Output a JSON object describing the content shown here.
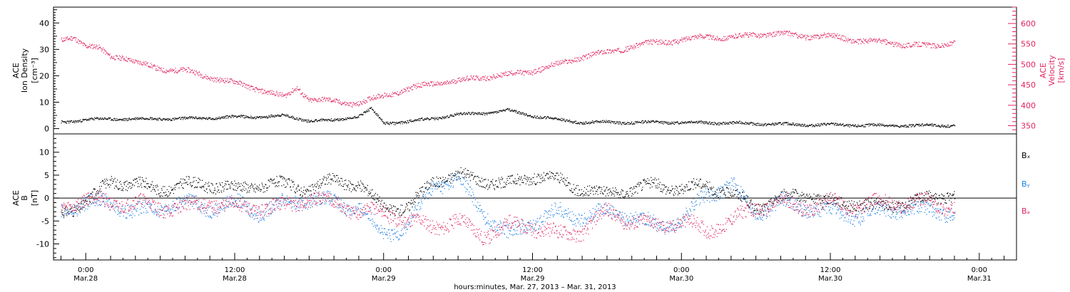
{
  "chart_data": [
    {
      "type": "scatter",
      "panel": "top",
      "ylabel_left": [
        "ACE",
        "Ion Density",
        "[cm⁻³]"
      ],
      "ylabel_right": [
        "ACE",
        "Velocity",
        "[km/s]"
      ],
      "ylim_left": [
        -2,
        46
      ],
      "yticks_left": [
        "0",
        "10",
        "20",
        "30",
        "40"
      ],
      "ylim_right": [
        330,
        640
      ],
      "yticks_right": [
        "350",
        "400",
        "450",
        "500",
        "550",
        "600"
      ],
      "series": [
        {
          "axis": "left",
          "color": "#000000",
          "x_hours": [
            -2,
            0,
            2,
            4,
            6,
            8,
            10,
            12,
            14,
            16,
            18,
            20,
            22,
            23,
            24,
            26,
            28,
            30,
            32,
            34,
            36,
            38,
            40,
            42,
            44,
            46,
            48,
            50,
            52,
            54,
            56,
            58,
            60,
            62,
            64,
            66,
            68,
            70
          ],
          "values": [
            2.6,
            3.5,
            3.8,
            3.8,
            3.9,
            3.9,
            4.2,
            4.6,
            4.6,
            5.0,
            3.2,
            3.2,
            5.0,
            7.5,
            2.2,
            2.8,
            4.0,
            5.5,
            6.0,
            7.0,
            5.0,
            3.5,
            2.5,
            2.6,
            2.4,
            2.6,
            2.5,
            2.4,
            2.2,
            2.0,
            1.8,
            1.6,
            1.6,
            1.4,
            1.3,
            1.3,
            1.3,
            1.4
          ]
        },
        {
          "axis": "right",
          "color": "#e0245e",
          "x_hours": [
            -2,
            -1,
            0,
            1,
            2,
            3,
            4,
            6,
            8,
            10,
            12,
            14,
            16,
            17,
            18,
            20,
            22,
            23,
            24,
            26,
            28,
            30,
            32,
            34,
            36,
            38,
            40,
            42,
            44,
            46,
            48,
            50,
            52,
            54,
            56,
            58,
            60,
            62,
            64,
            66,
            68,
            70
          ],
          "values": [
            560,
            570,
            545,
            540,
            520,
            520,
            505,
            490,
            485,
            470,
            455,
            440,
            420,
            445,
            415,
            410,
            405,
            415,
            425,
            440,
            455,
            460,
            470,
            475,
            485,
            500,
            520,
            530,
            545,
            555,
            560,
            570,
            565,
            575,
            575,
            570,
            570,
            560,
            555,
            550,
            545,
            555
          ]
        }
      ]
    },
    {
      "type": "scatter",
      "panel": "bottom",
      "ylabel": [
        "ACE",
        "B",
        "[nT]"
      ],
      "ylim": [
        -13.5,
        14
      ],
      "yticks": [
        "-10",
        "-5",
        "0",
        "5",
        "10"
      ],
      "legend": [
        "Bₓ",
        "Bᵧ",
        "Bₔ"
      ],
      "legend_colors": [
        "#000000",
        "#1f7fe0",
        "#e0245e"
      ],
      "legend_placement": "right",
      "zero_line": true,
      "series": [
        {
          "name": "Bx",
          "color": "#000000",
          "x_hours": [
            -2,
            0,
            2,
            4,
            6,
            8,
            10,
            12,
            14,
            16,
            18,
            20,
            22,
            24,
            26,
            28,
            30,
            32,
            34,
            36,
            38,
            40,
            42,
            44,
            46,
            48,
            50,
            52,
            54,
            56,
            58,
            60,
            62,
            64,
            66,
            68,
            70
          ],
          "values": [
            -3,
            -1,
            4,
            3,
            2,
            3,
            3,
            2,
            3,
            3,
            2,
            4,
            3,
            -2,
            -2,
            4,
            5,
            4,
            3,
            5,
            4,
            2,
            1,
            2,
            3,
            2,
            3,
            1,
            -2,
            0,
            1,
            -1,
            -1,
            -2,
            -1,
            0,
            1
          ]
        },
        {
          "name": "By",
          "color": "#1f7fe0",
          "x_hours": [
            -2,
            0,
            2,
            4,
            6,
            8,
            10,
            12,
            14,
            16,
            18,
            20,
            22,
            24,
            26,
            28,
            30,
            32,
            34,
            36,
            38,
            40,
            42,
            44,
            46,
            48,
            50,
            52,
            54,
            56,
            58,
            60,
            62,
            64,
            66,
            68,
            70
          ],
          "values": [
            -3,
            -1,
            -1,
            -3,
            -2,
            -1,
            -2,
            -1,
            -3,
            -1,
            0,
            -1,
            -2,
            -8,
            -6,
            3,
            4,
            -3,
            -8,
            -5,
            -3,
            -4,
            -3,
            -4,
            -6,
            -5,
            1,
            3,
            -3,
            -1,
            -2,
            -3,
            -4,
            -3,
            -2,
            -3,
            -3
          ]
        },
        {
          "name": "Bz",
          "color": "#e0245e",
          "x_hours": [
            -2,
            0,
            2,
            4,
            6,
            8,
            10,
            12,
            14,
            16,
            18,
            20,
            22,
            24,
            26,
            28,
            30,
            32,
            34,
            36,
            38,
            40,
            42,
            44,
            46,
            48,
            50,
            52,
            54,
            56,
            58,
            60,
            62,
            64,
            66,
            68,
            70
          ],
          "values": [
            -2,
            0,
            -1,
            -1,
            -2,
            -2,
            -1,
            -2,
            -2,
            -2,
            0,
            -1,
            -3,
            -3,
            -5,
            -6,
            -5,
            -8,
            -6,
            -6,
            -8,
            -7,
            -3,
            -5,
            -6,
            -5,
            -7,
            -5,
            -2,
            -1,
            -2,
            -1,
            -2,
            -1,
            -1,
            -1,
            -2
          ]
        }
      ]
    }
  ],
  "time_axis": {
    "ticks": [
      {
        "hour": 0,
        "time": "0:00",
        "date": "Mar.28"
      },
      {
        "hour": 12,
        "time": "12:00",
        "date": "Mar.28"
      },
      {
        "hour": 24,
        "time": "0:00",
        "date": "Mar.29"
      },
      {
        "hour": 36,
        "time": "12:00",
        "date": "Mar.29"
      },
      {
        "hour": 48,
        "time": "0:00",
        "date": "Mar.30"
      },
      {
        "hour": 60,
        "time": "12:00",
        "date": "Mar.30"
      },
      {
        "hour": 72,
        "time": "0:00",
        "date": "Mar.31"
      }
    ],
    "xlabel": "hours:minutes, Mar. 27, 2013 – Mar. 31, 2013",
    "range_hours": [
      -2.6,
      75
    ]
  }
}
